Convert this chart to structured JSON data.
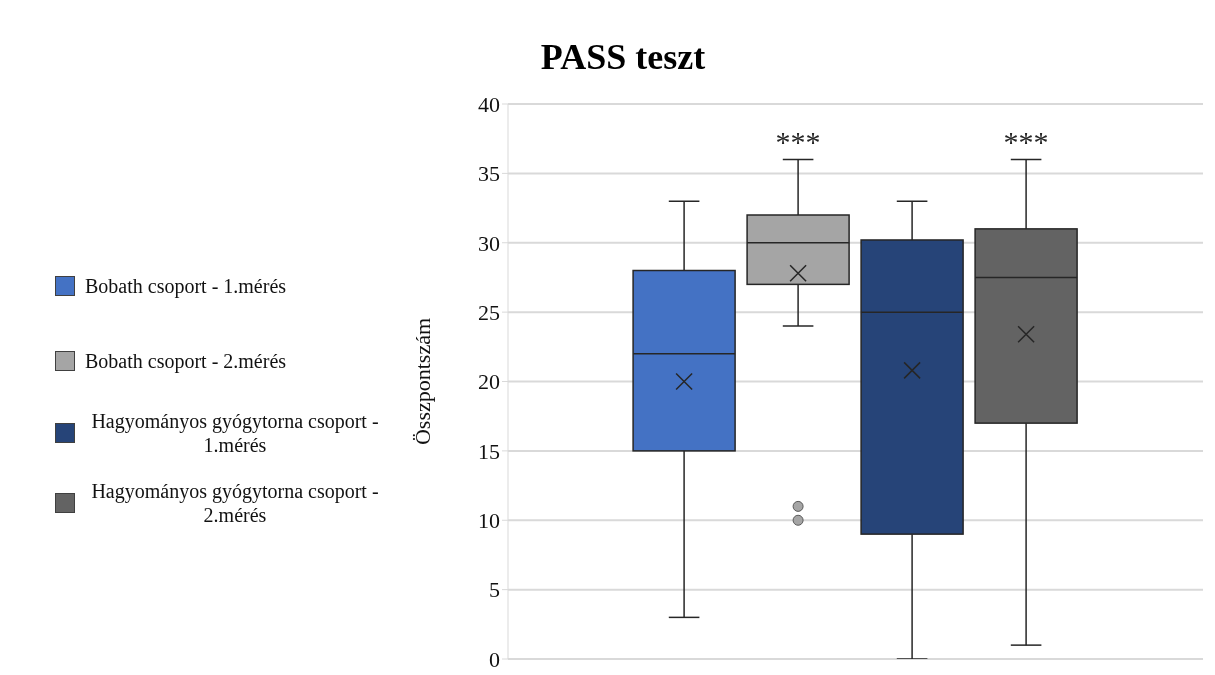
{
  "chart_data": {
    "type": "box",
    "title": "PASS teszt",
    "ylabel": "Összpontszám",
    "categories": [
      null
    ],
    "series": [
      {
        "name": "Bobath csoport - 1.mérés",
        "color": "#4472c4",
        "boxes": [
          {
            "low": 3,
            "q1": 15,
            "median": 22,
            "q3": 28,
            "high": 33,
            "mean": 20
          }
        ]
      },
      {
        "name": "Bobath csoport - 2.mérés",
        "color": "#a5a5a5",
        "boxes": [
          {
            "low": 24,
            "q1": 27,
            "median": 30,
            "q3": 32,
            "high": 36,
            "mean": 27.8,
            "outliers": [
              10,
              11
            ]
          }
        ]
      },
      {
        "name": "Hagyományos gyógytorna csoport - 1.mérés",
        "color": "#264478",
        "boxes": [
          {
            "low": 0,
            "q1": 9,
            "median": 25,
            "q3": 30.2,
            "high": 33,
            "mean": 20.8
          }
        ]
      },
      {
        "name": "Hagyományos gyógytorna csoport - 2.mérés",
        "color": "#636363",
        "boxes": [
          {
            "low": 1,
            "q1": 17,
            "median": 27.5,
            "q3": 31,
            "high": 36,
            "mean": 23.4
          }
        ]
      }
    ],
    "annotations": [
      "***",
      "***"
    ],
    "ylim": [
      0,
      40
    ],
    "yticks": [
      0,
      5,
      10,
      15,
      20,
      25,
      30,
      35,
      40
    ],
    "grid": "y",
    "legend": "left"
  }
}
